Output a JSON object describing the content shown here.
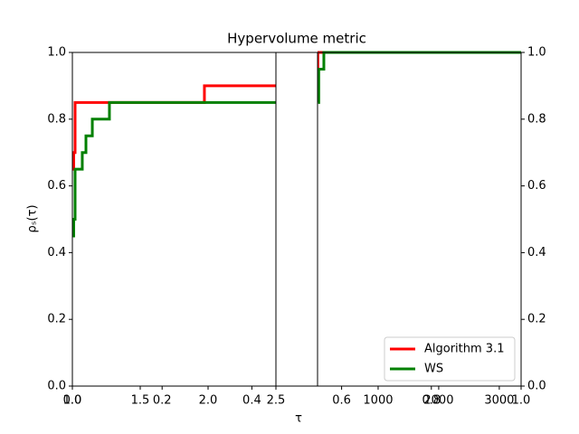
{
  "chart_data": [
    {
      "type": "step",
      "xlim": [
        1.0,
        2.5
      ],
      "xticks": [
        {
          "value": 1.0,
          "label": "1.0"
        },
        1.5,
        {
          "value": 2.0,
          "label": "2.0"
        },
        2.5
      ],
      "ylim": [
        0,
        1
      ],
      "series": [
        {
          "name": "Algorithm 3.1",
          "color": "#ff0000",
          "x": [
            1.0,
            1.01,
            1.02,
            1.973
          ],
          "values": [
            0.65,
            0.7,
            0.85,
            0.9
          ]
        },
        {
          "name": "WS",
          "color": "#008000",
          "x": [
            1.0,
            1.01,
            1.02,
            1.073,
            1.1,
            1.147,
            1.273
          ],
          "values": [
            0.45,
            0.5,
            0.65,
            0.7,
            0.75,
            0.8,
            0.85
          ]
        }
      ]
    },
    {
      "type": "step",
      "xlim": [
        0,
        3360
      ],
      "xticks": [
        1000,
        2000,
        3000
      ],
      "ylim": [
        0,
        1
      ],
      "series": [
        {
          "name": "Algorithm 3.1",
          "color": "#ff0000",
          "x": [
            0,
            5
          ],
          "values": [
            0.9,
            1.0
          ]
        },
        {
          "name": "WS",
          "color": "#008000",
          "x": [
            10,
            20,
            104
          ],
          "values": [
            0.85,
            0.95,
            1.0
          ]
        }
      ]
    },
    {
      "type": "frame",
      "title": "Hypervolume metric",
      "xlabel": "τ",
      "ylabel": "ρₛ(τ)",
      "legend": "lower right",
      "xlim": [
        0,
        1
      ],
      "xticks": [
        {
          "value": 0,
          "label": "0.0"
        },
        0.2,
        0.4,
        0.6,
        0.8,
        {
          "value": 1,
          "label": "1.0"
        }
      ],
      "ylim": [
        0,
        1
      ],
      "yticks": [
        {
          "value": 0,
          "label": "0.0"
        },
        0.2,
        0.4,
        0.6,
        0.8,
        {
          "value": 1,
          "label": "1.0"
        }
      ],
      "y2ticks": [
        {
          "value": 0,
          "label": "0.0"
        },
        0.2,
        0.4,
        0.6,
        0.8,
        {
          "value": 1,
          "label": "1.0"
        }
      ]
    }
  ]
}
